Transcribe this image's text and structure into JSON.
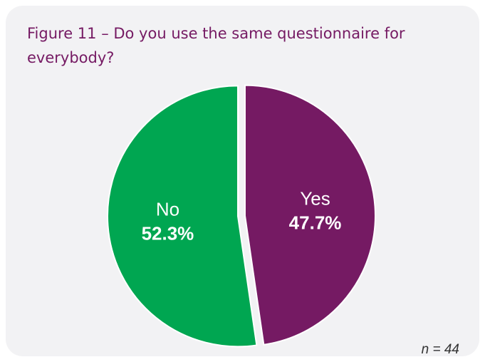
{
  "chart_data": {
    "type": "pie",
    "title": "Figure 11 – Do you use the same questionnaire for everybody?",
    "categories": [
      "No",
      "Yes"
    ],
    "values": [
      52.3,
      47.7
    ],
    "value_labels": [
      "52.3%",
      "47.7%"
    ],
    "colors": [
      "#00a651",
      "#751a63"
    ],
    "note": "n = 44",
    "start_angle": "12 o'clock",
    "direction": "counterclockwise for first slice (No on left)",
    "exploded": "slices slightly separated"
  }
}
